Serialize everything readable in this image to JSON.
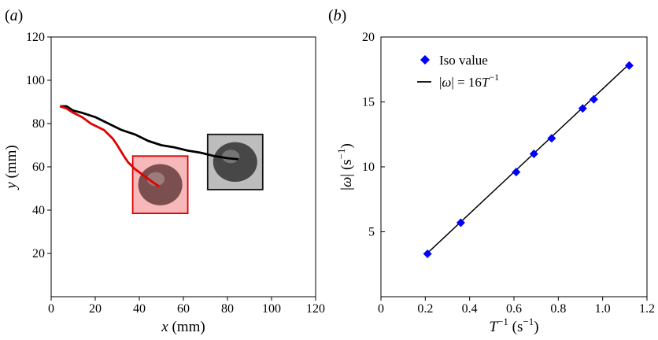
{
  "chart_data": [
    {
      "panel_label": "(a)",
      "panel_letter": "a",
      "type": "line",
      "xlabel": {
        "var": "x",
        "unit": "(mm)"
      },
      "ylabel": {
        "var": "y",
        "unit": "(mm)"
      },
      "xlim": [
        0,
        120
      ],
      "ylim": [
        0,
        120
      ],
      "xticks": [
        0,
        20,
        40,
        60,
        80,
        100,
        120
      ],
      "yticks": [
        20,
        40,
        60,
        80,
        100,
        120
      ],
      "grid": false,
      "series": [
        {
          "color": "#000000",
          "points": [
            [
              4,
              88
            ],
            [
              7,
              88
            ],
            [
              10,
              86
            ],
            [
              14,
              85
            ],
            [
              20,
              83
            ],
            [
              26,
              80
            ],
            [
              32,
              77
            ],
            [
              38,
              75
            ],
            [
              44,
              72
            ],
            [
              50,
              70
            ],
            [
              56,
              69
            ],
            [
              62,
              67.5
            ],
            [
              68,
              66.5
            ],
            [
              74,
              65
            ],
            [
              80,
              64
            ],
            [
              85,
              63.5
            ]
          ]
        },
        {
          "color": "#e00000",
          "points": [
            [
              4,
              88
            ],
            [
              7,
              87
            ],
            [
              10,
              85
            ],
            [
              14,
              83
            ],
            [
              18,
              80
            ],
            [
              24,
              77
            ],
            [
              28,
              73
            ],
            [
              30,
              70
            ],
            [
              33,
              65
            ],
            [
              35,
              62
            ],
            [
              38,
              59
            ],
            [
              42,
              56
            ],
            [
              46,
              53
            ],
            [
              49,
              51
            ]
          ]
        }
      ],
      "boxes": [
        {
          "x0": 37,
          "x1": 62,
          "y0": 38.5,
          "y1": 65,
          "stroke": "#e00000",
          "fill": "#f6b8b8",
          "blob": "#6e4444"
        },
        {
          "x0": 71,
          "x1": 96,
          "y0": 49.5,
          "y1": 75,
          "stroke": "#111111",
          "fill": "#bdbdbd",
          "blob": "#3a3a3a"
        }
      ]
    },
    {
      "panel_label": "(b)",
      "panel_letter": "b",
      "type": "scatter",
      "xlabel": {
        "base": "T",
        "exp": "−1",
        "unit": "(s",
        "unit_exp": "−1",
        "unit_close": ")"
      },
      "ylabel": {
        "open": "|",
        "var": "ω",
        "close": "|",
        "unit": "(s",
        "unit_exp": "−1",
        "unit_close": ")"
      },
      "xlim": [
        0,
        1.2
      ],
      "ylim": [
        0,
        20
      ],
      "xticks": [
        "0",
        "0.2",
        "0.4",
        "0.6",
        "0.8",
        "1.0",
        "1.2"
      ],
      "yticks": [
        0,
        5,
        10,
        15,
        20
      ],
      "grid": false,
      "legend_position": "top-left",
      "series": [
        {
          "name": "Iso value",
          "kind": "markers",
          "color": "#0000ff",
          "marker": "diamond",
          "x": [
            0.21,
            0.36,
            0.61,
            0.69,
            0.77,
            0.91,
            0.96,
            1.12
          ],
          "y": [
            3.3,
            5.7,
            9.6,
            11.0,
            12.2,
            14.5,
            15.2,
            17.8
          ]
        },
        {
          "name_parts": {
            "open": "|",
            "var": "ω",
            "mid": "| = 16",
            "T": "T",
            "exp": "−1"
          },
          "kind": "line",
          "color": "#000000",
          "slope": 16,
          "x_range": [
            0.21,
            1.12
          ]
        }
      ]
    }
  ]
}
